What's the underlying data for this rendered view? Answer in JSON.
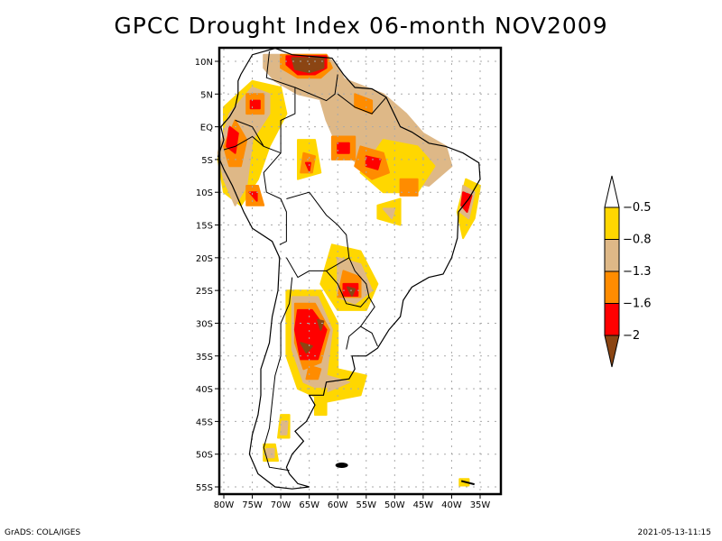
{
  "title": "GPCC Drought Index 06-month NOV2009",
  "footer": {
    "left": "GrADS: COLA/IGES",
    "right": "2021-05-13-11:15"
  },
  "map": {
    "region": "South America",
    "lon_range": [
      -81,
      -31
    ],
    "lat_range": [
      12,
      -56
    ],
    "grid": "dotted",
    "x_ticks": [
      "80W",
      "75W",
      "70W",
      "65W",
      "60W",
      "55W",
      "50W",
      "45W",
      "40W",
      "35W"
    ],
    "x_tick_values": [
      -80,
      -75,
      -70,
      -65,
      -60,
      -55,
      -50,
      -45,
      -40,
      -35
    ],
    "y_ticks": [
      "10N",
      "5N",
      "EQ",
      "5S",
      "10S",
      "15S",
      "20S",
      "25S",
      "30S",
      "35S",
      "40S",
      "45S",
      "50S",
      "55S"
    ],
    "y_tick_values": [
      10,
      5,
      0,
      -5,
      -10,
      -15,
      -20,
      -25,
      -30,
      -35,
      -40,
      -45,
      -50,
      -55
    ]
  },
  "legend": {
    "placement": "right",
    "levels": [
      {
        "label": "-0.5",
        "color": "#ffffff",
        "range": "> -0.5",
        "shape": "top-arrow"
      },
      {
        "label": "-0.8",
        "color": "#ffd700",
        "range": "-0.8 to -0.5"
      },
      {
        "label": "-1.3",
        "color": "#deb887",
        "range": "-1.3 to -0.8"
      },
      {
        "label": "-1.6",
        "color": "#ff8c00",
        "range": "-1.6 to -1.3"
      },
      {
        "label": "-2",
        "color": "#ff0000",
        "range": "-2 to -1.6"
      },
      {
        "label": "",
        "color": "#8b4513",
        "range": "< -2",
        "shape": "bottom-arrow"
      }
    ]
  },
  "colors": {
    "mild": "#ffd700",
    "moderate": "#deb887",
    "severe": "#ff8c00",
    "extreme": "#ff0000",
    "exceptional": "#8b4513",
    "grid": "#aaaaaa"
  }
}
